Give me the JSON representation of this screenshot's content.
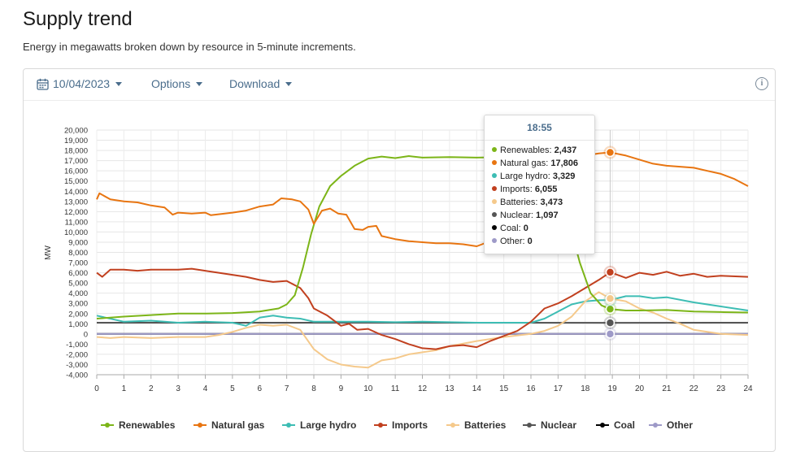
{
  "page": {
    "title": "Supply trend",
    "subtitle": "Energy in megawatts broken down by resource in 5-minute increments."
  },
  "toolbar": {
    "date": "10/04/2023",
    "options": "Options",
    "download": "Download",
    "info": "i"
  },
  "tooltip": {
    "time": "18:55",
    "rows": [
      {
        "name": "Renewables",
        "value": "2,437"
      },
      {
        "name": "Natural gas",
        "value": "17,806"
      },
      {
        "name": "Large hydro",
        "value": "3,329"
      },
      {
        "name": "Imports",
        "value": "6,055"
      },
      {
        "name": "Batteries",
        "value": "3,473"
      },
      {
        "name": "Nuclear",
        "value": "1,097"
      },
      {
        "name": "Coal",
        "value": "0"
      },
      {
        "name": "Other",
        "value": "0"
      }
    ]
  },
  "chart_data": {
    "type": "line",
    "title": "Supply trend",
    "xlabel": "",
    "ylabel": "MW",
    "xlim": [
      0,
      24
    ],
    "ylim": [
      -4000,
      20000
    ],
    "x_ticks": [
      0,
      1,
      2,
      3,
      4,
      5,
      6,
      7,
      8,
      9,
      10,
      11,
      12,
      13,
      14,
      15,
      16,
      17,
      18,
      19,
      20,
      21,
      22,
      23,
      24
    ],
    "y_ticks": [
      -4000,
      -3000,
      -2000,
      -1000,
      0,
      1000,
      2000,
      3000,
      4000,
      5000,
      6000,
      7000,
      8000,
      9000,
      10000,
      11000,
      12000,
      13000,
      14000,
      15000,
      16000,
      17000,
      18000,
      19000,
      20000
    ],
    "y_tick_labels": [
      "-4,000",
      "-3,000",
      "-2,000",
      "-1,000",
      "0",
      "1,000",
      "2,000",
      "3,000",
      "4,000",
      "5,000",
      "6,000",
      "7,000",
      "8,000",
      "9,000",
      "10,000",
      "11,000",
      "12,000",
      "13,000",
      "14,000",
      "15,000",
      "16,000",
      "17,000",
      "18,000",
      "19,000",
      "20,000"
    ],
    "grid": true,
    "legend_position": "bottom",
    "hover_x": 18.92,
    "series": [
      {
        "name": "Renewables",
        "color": "#7cb518",
        "points": [
          [
            0,
            1500
          ],
          [
            1,
            1700
          ],
          [
            2,
            1850
          ],
          [
            3,
            2000
          ],
          [
            4,
            2000
          ],
          [
            5,
            2050
          ],
          [
            6,
            2200
          ],
          [
            6.7,
            2500
          ],
          [
            7,
            2900
          ],
          [
            7.3,
            3800
          ],
          [
            7.6,
            6500
          ],
          [
            7.9,
            9800
          ],
          [
            8.2,
            12500
          ],
          [
            8.6,
            14500
          ],
          [
            9,
            15500
          ],
          [
            9.5,
            16500
          ],
          [
            10,
            17200
          ],
          [
            10.5,
            17400
          ],
          [
            11,
            17250
          ],
          [
            11.5,
            17450
          ],
          [
            12,
            17300
          ],
          [
            13,
            17350
          ],
          [
            14,
            17300
          ],
          [
            15,
            17350
          ],
          [
            16,
            17300
          ],
          [
            17,
            15500
          ],
          [
            17.4,
            11000
          ],
          [
            17.8,
            7000
          ],
          [
            18.2,
            4000
          ],
          [
            18.6,
            2800
          ],
          [
            18.92,
            2437
          ],
          [
            19.5,
            2300
          ],
          [
            20,
            2300
          ],
          [
            21,
            2350
          ],
          [
            22,
            2200
          ],
          [
            23,
            2150
          ],
          [
            24,
            2100
          ]
        ]
      },
      {
        "name": "Natural gas",
        "color": "#e87511",
        "points": [
          [
            0,
            13200
          ],
          [
            0.1,
            13800
          ],
          [
            0.5,
            13200
          ],
          [
            1,
            13000
          ],
          [
            1.5,
            12900
          ],
          [
            2,
            12600
          ],
          [
            2.5,
            12400
          ],
          [
            2.8,
            11700
          ],
          [
            3,
            11900
          ],
          [
            3.5,
            11800
          ],
          [
            4,
            11900
          ],
          [
            4.2,
            11650
          ],
          [
            5,
            11900
          ],
          [
            5.5,
            12100
          ],
          [
            6,
            12500
          ],
          [
            6.5,
            12700
          ],
          [
            6.8,
            13300
          ],
          [
            7.2,
            13200
          ],
          [
            7.5,
            13000
          ],
          [
            7.8,
            12200
          ],
          [
            8,
            10800
          ],
          [
            8.3,
            12100
          ],
          [
            8.6,
            12300
          ],
          [
            8.9,
            11800
          ],
          [
            9.2,
            11700
          ],
          [
            9.5,
            10300
          ],
          [
            9.8,
            10200
          ],
          [
            10,
            10500
          ],
          [
            10.3,
            10600
          ],
          [
            10.5,
            9600
          ],
          [
            11,
            9300
          ],
          [
            11.5,
            9100
          ],
          [
            12,
            9000
          ],
          [
            12.5,
            8900
          ],
          [
            13,
            8900
          ],
          [
            13.5,
            8800
          ],
          [
            14,
            8600
          ],
          [
            14.5,
            9100
          ],
          [
            15,
            9300
          ],
          [
            15.6,
            10000
          ],
          [
            16.3,
            12000
          ],
          [
            17,
            14500
          ],
          [
            17.6,
            16500
          ],
          [
            18,
            17500
          ],
          [
            18.5,
            17700
          ],
          [
            18.92,
            17806
          ],
          [
            19.5,
            17500
          ],
          [
            20,
            17100
          ],
          [
            20.5,
            16700
          ],
          [
            21,
            16500
          ],
          [
            22,
            16300
          ],
          [
            22.5,
            16000
          ],
          [
            23,
            15700
          ],
          [
            23.5,
            15200
          ],
          [
            24,
            14500
          ]
        ]
      },
      {
        "name": "Large hydro",
        "color": "#3dbdb4",
        "points": [
          [
            0,
            1800
          ],
          [
            1,
            1200
          ],
          [
            2,
            1300
          ],
          [
            3,
            1100
          ],
          [
            4,
            1200
          ],
          [
            5,
            1100
          ],
          [
            5.5,
            800
          ],
          [
            6,
            1600
          ],
          [
            6.5,
            1800
          ],
          [
            7,
            1600
          ],
          [
            7.5,
            1500
          ],
          [
            8,
            1200
          ],
          [
            9,
            1200
          ],
          [
            10,
            1200
          ],
          [
            11,
            1150
          ],
          [
            12,
            1200
          ],
          [
            13,
            1150
          ],
          [
            14,
            1100
          ],
          [
            15,
            1100
          ],
          [
            16,
            1100
          ],
          [
            16.5,
            1500
          ],
          [
            17,
            2200
          ],
          [
            17.5,
            2900
          ],
          [
            18,
            3200
          ],
          [
            18.5,
            3300
          ],
          [
            18.92,
            3329
          ],
          [
            19.5,
            3700
          ],
          [
            20,
            3700
          ],
          [
            20.5,
            3500
          ],
          [
            21,
            3600
          ],
          [
            22,
            3100
          ],
          [
            23,
            2700
          ],
          [
            24,
            2300
          ]
        ]
      },
      {
        "name": "Imports",
        "color": "#c1401f",
        "points": [
          [
            0,
            6000
          ],
          [
            0.2,
            5600
          ],
          [
            0.5,
            6300
          ],
          [
            1,
            6300
          ],
          [
            1.5,
            6200
          ],
          [
            2,
            6300
          ],
          [
            3,
            6300
          ],
          [
            3.5,
            6400
          ],
          [
            4,
            6200
          ],
          [
            4.5,
            6000
          ],
          [
            5,
            5800
          ],
          [
            5.5,
            5600
          ],
          [
            6,
            5300
          ],
          [
            6.5,
            5100
          ],
          [
            7,
            5200
          ],
          [
            7.5,
            4500
          ],
          [
            7.8,
            3500
          ],
          [
            8,
            2500
          ],
          [
            8.5,
            1800
          ],
          [
            9,
            800
          ],
          [
            9.3,
            1000
          ],
          [
            9.6,
            400
          ],
          [
            10,
            500
          ],
          [
            10.5,
            -100
          ],
          [
            11,
            -500
          ],
          [
            11.5,
            -1000
          ],
          [
            12,
            -1400
          ],
          [
            12.5,
            -1500
          ],
          [
            13,
            -1200
          ],
          [
            13.5,
            -1100
          ],
          [
            14,
            -1300
          ],
          [
            14.5,
            -700
          ],
          [
            15,
            -200
          ],
          [
            15.5,
            300
          ],
          [
            16,
            1200
          ],
          [
            16.5,
            2500
          ],
          [
            17,
            3000
          ],
          [
            17.5,
            3700
          ],
          [
            18,
            4500
          ],
          [
            18.5,
            5300
          ],
          [
            18.92,
            6055
          ],
          [
            19.5,
            5500
          ],
          [
            20,
            6000
          ],
          [
            20.5,
            5800
          ],
          [
            21,
            6100
          ],
          [
            21.5,
            5700
          ],
          [
            22,
            5900
          ],
          [
            22.5,
            5600
          ],
          [
            23,
            5700
          ],
          [
            24,
            5600
          ]
        ]
      },
      {
        "name": "Batteries",
        "color": "#f5c98b",
        "points": [
          [
            0,
            -300
          ],
          [
            0.5,
            -400
          ],
          [
            1,
            -300
          ],
          [
            2,
            -400
          ],
          [
            3,
            -300
          ],
          [
            4,
            -300
          ],
          [
            4.5,
            -100
          ],
          [
            5,
            200
          ],
          [
            5.5,
            600
          ],
          [
            6,
            900
          ],
          [
            6.5,
            800
          ],
          [
            7,
            900
          ],
          [
            7.5,
            400
          ],
          [
            8,
            -1500
          ],
          [
            8.5,
            -2500
          ],
          [
            9,
            -3000
          ],
          [
            9.5,
            -3200
          ],
          [
            10,
            -3300
          ],
          [
            10.5,
            -2600
          ],
          [
            11,
            -2400
          ],
          [
            11.5,
            -2000
          ],
          [
            12,
            -1800
          ],
          [
            12.5,
            -1600
          ],
          [
            13,
            -1200
          ],
          [
            14,
            -700
          ],
          [
            15,
            -300
          ],
          [
            16,
            0
          ],
          [
            16.5,
            300
          ],
          [
            17,
            800
          ],
          [
            17.5,
            1700
          ],
          [
            18,
            3200
          ],
          [
            18.5,
            4100
          ],
          [
            18.92,
            3473
          ],
          [
            19.5,
            3200
          ],
          [
            20,
            2500
          ],
          [
            20.5,
            2100
          ],
          [
            21,
            1500
          ],
          [
            21.5,
            1000
          ],
          [
            22,
            400
          ],
          [
            23,
            0
          ],
          [
            24,
            -100
          ]
        ]
      },
      {
        "name": "Nuclear",
        "color": "#555555",
        "points": [
          [
            0,
            1100
          ],
          [
            6,
            1100
          ],
          [
            12,
            1100
          ],
          [
            18.92,
            1097
          ],
          [
            24,
            1100
          ]
        ]
      },
      {
        "name": "Coal",
        "color": "#000000",
        "points": [
          [
            0,
            0
          ],
          [
            24,
            0
          ]
        ]
      },
      {
        "name": "Other",
        "color": "#9e9ac8",
        "points": [
          [
            0,
            0
          ],
          [
            24,
            0
          ]
        ]
      }
    ]
  }
}
